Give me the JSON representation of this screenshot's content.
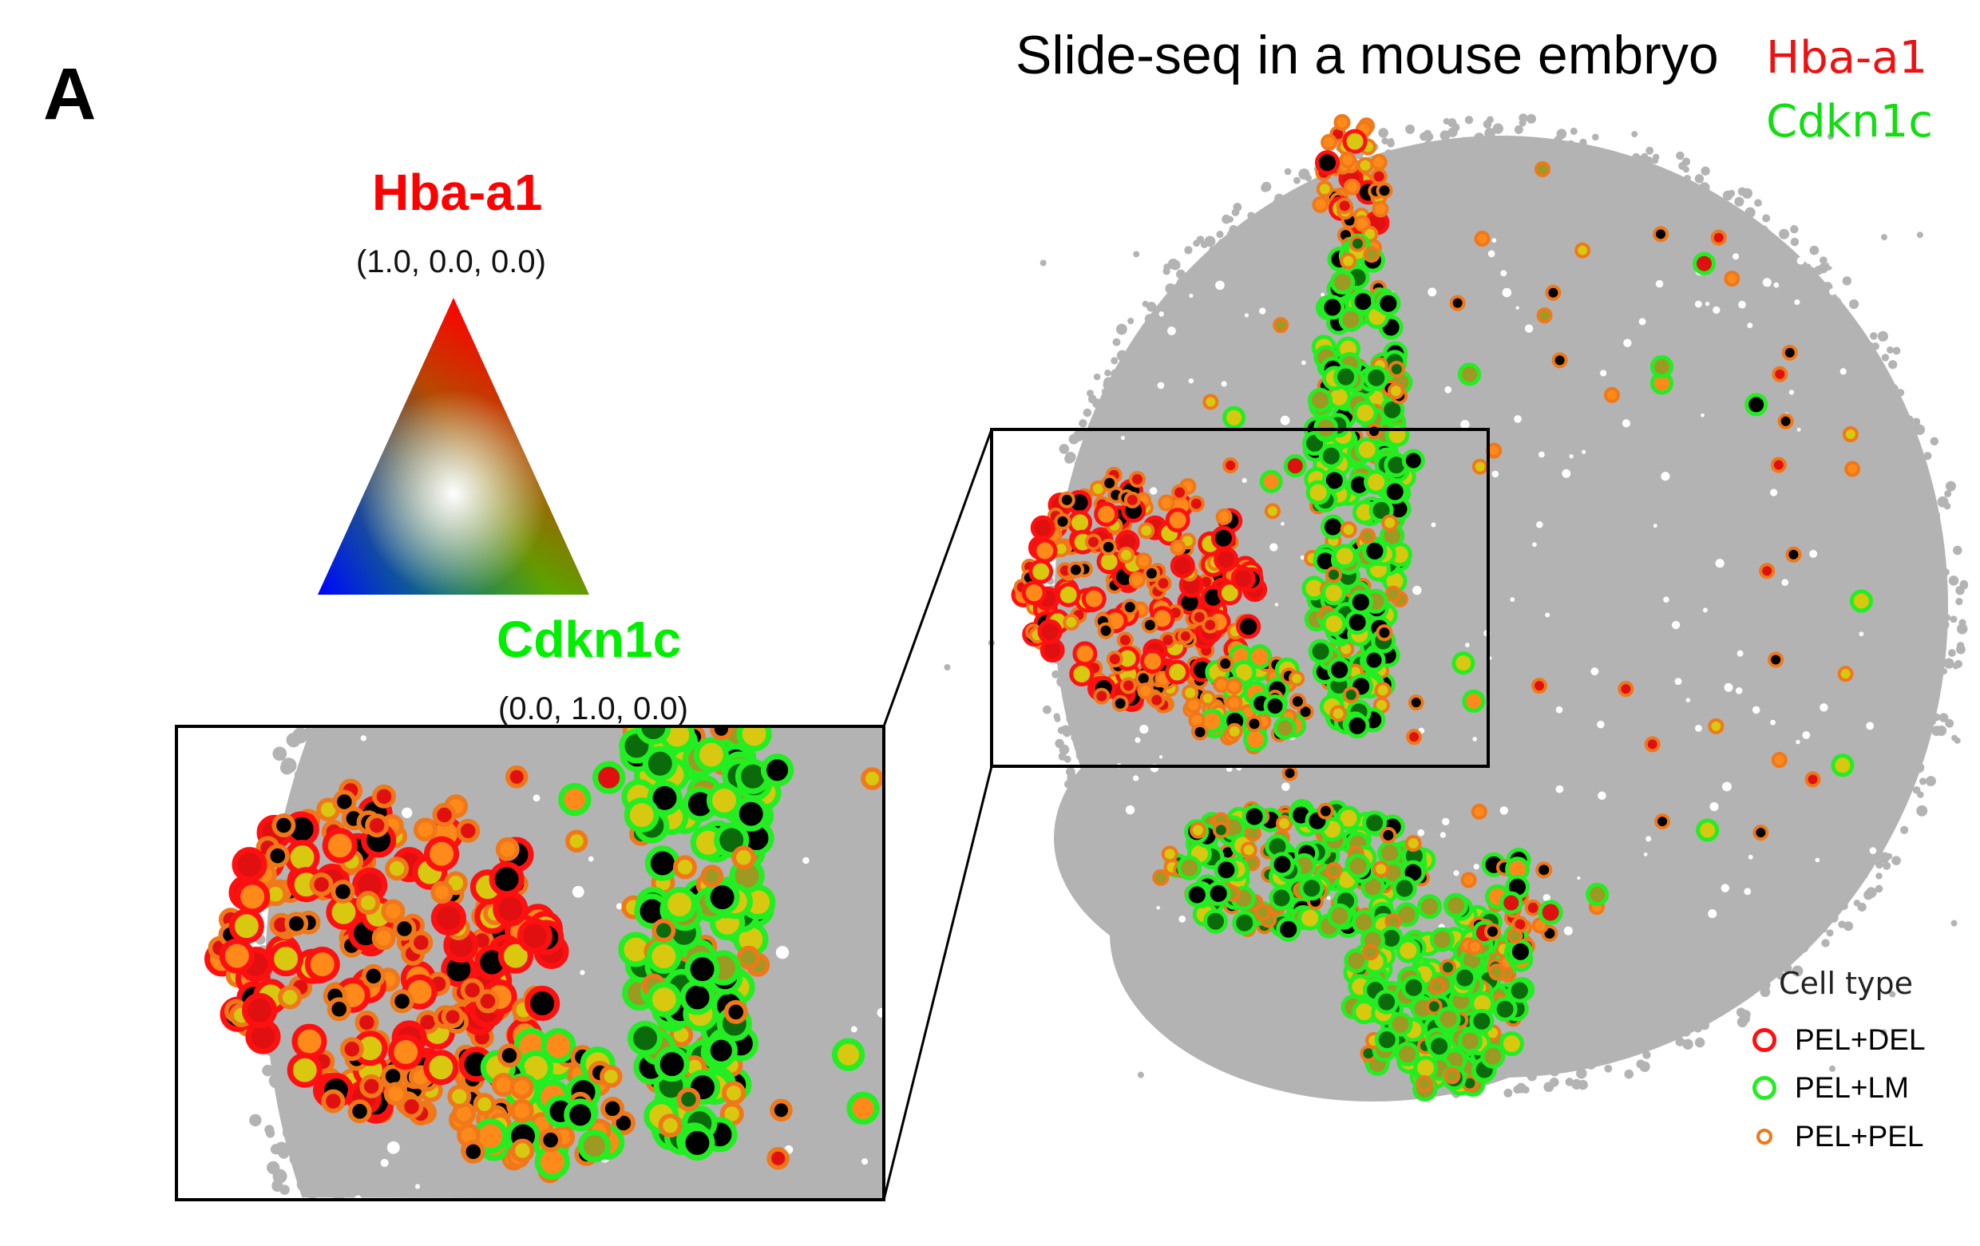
{
  "panel_letter": "A",
  "color_triangle": {
    "top": {
      "label": "Hba-a1",
      "coord": "(1.0, 0.0, 0.0)",
      "color": "#ff0000"
    },
    "bottom_right": {
      "label": "Cdkn1c",
      "coord": "(0.0, 1.0, 0.0)",
      "color": "#00ff00"
    }
  },
  "chart_data": {
    "type": "scatter",
    "title": "Slide-seq in a mouse embryo",
    "genes": [
      {
        "name": "Hba-a1",
        "color": "#ee1111"
      },
      {
        "name": "Cdkn1c",
        "color": "#11dd11"
      }
    ],
    "legend": {
      "title": "Cell type",
      "placement": "bottom-right",
      "entries": [
        {
          "label": "PEL+DEL",
          "edge_color": "#ff1010",
          "size": "large"
        },
        {
          "label": "PEL+LM",
          "edge_color": "#22ee22",
          "size": "large"
        },
        {
          "label": "PEL+PEL",
          "edge_color": "#f07818",
          "size": "small"
        }
      ]
    },
    "background_color": "#b3b3b3",
    "fill_colors": [
      "#000000",
      "#0b6b0b",
      "#9c9a22",
      "#d8c810",
      "#e01010",
      "#ff8a1a"
    ],
    "inset": "magnified view of boxed region",
    "grid": false
  }
}
